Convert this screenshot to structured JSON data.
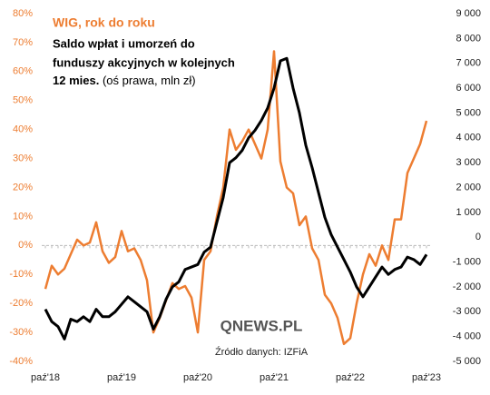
{
  "chart_data": {
    "type": "line",
    "title": "WIG, rok do roku",
    "subtitle": [
      "Saldo wpłat i umorzeń do",
      "funduszy akcyjnych w kolejnych",
      "12 mies.",
      "(oś prawa, mln zł)"
    ],
    "source": "Źródło danych: IZFiA",
    "logo": "QNEWS.PL",
    "categories": [
      "paź'18",
      null,
      null,
      null,
      null,
      null,
      null,
      null,
      null,
      null,
      null,
      null,
      "paź'19",
      null,
      null,
      null,
      null,
      null,
      null,
      null,
      null,
      null,
      null,
      null,
      "paź'20",
      null,
      null,
      null,
      null,
      null,
      null,
      null,
      null,
      null,
      null,
      null,
      "paź'21",
      null,
      null,
      null,
      null,
      null,
      null,
      null,
      null,
      null,
      null,
      null,
      "paź'22",
      null,
      null,
      null,
      null,
      null,
      null,
      null,
      null,
      null,
      null,
      null,
      "paź'23"
    ],
    "series": [
      {
        "color": "#ed7d31",
        "axis": "y",
        "values": [
          -15,
          -7,
          -10,
          -8,
          -3,
          2,
          0,
          1,
          8,
          -2,
          -6,
          -4,
          5,
          -2,
          -1,
          -5,
          -12,
          -30,
          -25,
          -19,
          -13,
          -15,
          -14,
          -18,
          -30,
          -5,
          -2,
          10,
          20,
          40,
          33,
          36,
          40,
          35,
          30,
          40,
          67,
          29,
          20,
          18,
          7,
          10,
          -1,
          -5,
          -17,
          -20,
          -25,
          -34,
          -32,
          -20,
          -10,
          -3,
          -7,
          0,
          -5,
          9,
          9,
          25,
          30,
          35,
          43
        ]
      },
      {
        "color": "#000000",
        "axis": "y2",
        "values": [
          -2900,
          -3400,
          -3600,
          -4100,
          -3300,
          -3400,
          -3200,
          -3400,
          -2900,
          -3200,
          -3200,
          -3000,
          -2700,
          -2400,
          -2600,
          -2800,
          -3000,
          -3700,
          -3200,
          -2500,
          -2000,
          -1800,
          -1300,
          -1200,
          -1100,
          -600,
          -400,
          600,
          1600,
          3000,
          3200,
          3500,
          4000,
          4300,
          4700,
          5200,
          6000,
          7100,
          7200,
          6000,
          5000,
          3700,
          2800,
          1800,
          800,
          100,
          -400,
          -900,
          -1400,
          -2000,
          -2400,
          -2000,
          -1600,
          -1200,
          -1500,
          -1300,
          -1200,
          -800,
          -900,
          -1100,
          -700
        ]
      }
    ],
    "ylim": [
      -40,
      80
    ],
    "yticks": [
      {
        "value": -40,
        "label": "-40%"
      },
      {
        "value": -30,
        "label": "-30%"
      },
      {
        "value": -20,
        "label": "-20%"
      },
      {
        "value": -10,
        "label": "-10%"
      },
      {
        "value": 0,
        "label": "0%"
      },
      {
        "value": 10,
        "label": "10%"
      },
      {
        "value": 20,
        "label": "20%"
      },
      {
        "value": 30,
        "label": "30%"
      },
      {
        "value": 40,
        "label": "40%"
      },
      {
        "value": 50,
        "label": "50%"
      },
      {
        "value": 60,
        "label": "60%"
      },
      {
        "value": 70,
        "label": "70%"
      },
      {
        "value": 80,
        "label": "80%"
      }
    ],
    "y2lim": [
      -5000,
      9000
    ],
    "y2ticks": [
      {
        "value": -5000,
        "label": "-5 000"
      },
      {
        "value": -4000,
        "label": "-4 000"
      },
      {
        "value": -3000,
        "label": "-3 000"
      },
      {
        "value": -2000,
        "label": "-2 000"
      },
      {
        "value": -1000,
        "label": "-1 000"
      },
      0,
      {
        "value": 1000,
        "label": "1 000"
      },
      {
        "value": 2000,
        "label": "2 000"
      },
      {
        "value": 3000,
        "label": "3 000"
      },
      {
        "value": 4000,
        "label": "4 000"
      },
      {
        "value": 5000,
        "label": "5 000"
      },
      {
        "value": 6000,
        "label": "6 000"
      },
      {
        "value": 7000,
        "label": "7 000"
      },
      {
        "value": 8000,
        "label": "8 000"
      },
      {
        "value": 9000,
        "label": "9 000"
      }
    ]
  }
}
